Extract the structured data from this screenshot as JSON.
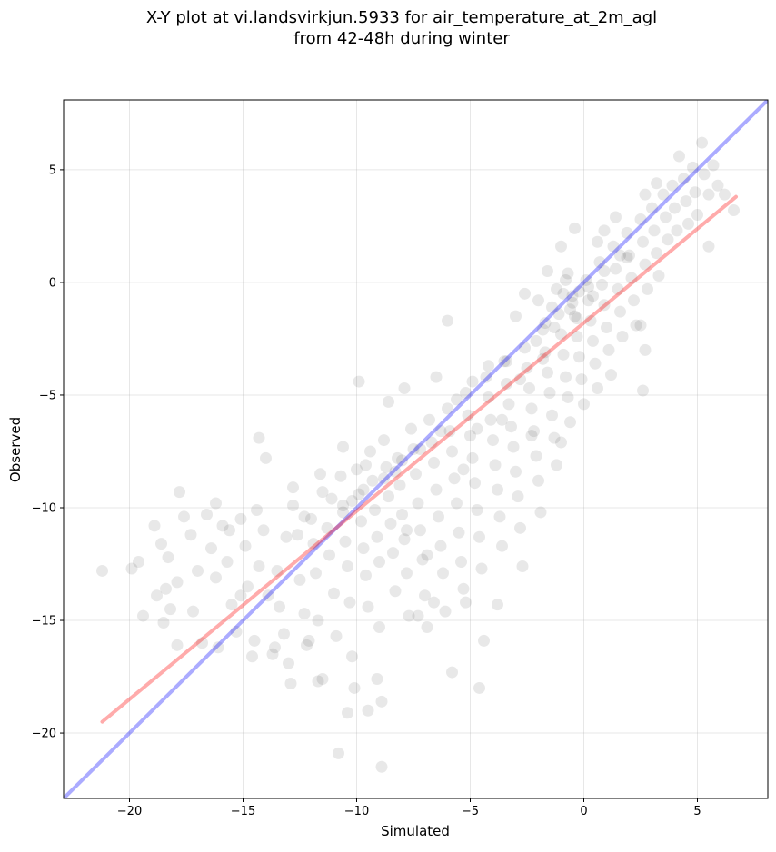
{
  "chart_data": {
    "type": "scatter",
    "title_line1": "X-Y plot at vi.landsvirkjun.5933 for air_temperature_at_2m_agl",
    "title_line2": "from 42-48h during winter",
    "xlabel": "Simulated",
    "ylabel": "Observed",
    "xlim": [
      -22.9,
      8.1
    ],
    "ylim": [
      -22.9,
      8.1
    ],
    "xticks": [
      -20,
      -15,
      -10,
      -5,
      0,
      5
    ],
    "yticks": [
      -20,
      -15,
      -10,
      -5,
      0,
      5
    ],
    "xtick_labels": [
      "−20",
      "−15",
      "−10",
      "−5",
      "0",
      "5"
    ],
    "ytick_labels": [
      "−20",
      "−15",
      "−10",
      "−5",
      "0",
      "5"
    ],
    "grid": true,
    "point_color": "#000000",
    "point_opacity": 0.09,
    "identity_line": {
      "x": [
        -22.9,
        8.1
      ],
      "y": [
        -22.9,
        8.1
      ],
      "color": "#0000ff",
      "opacity": 0.33
    },
    "fit_line": {
      "x": [
        -21.2,
        6.7
      ],
      "y": [
        -19.5,
        3.8
      ],
      "color": "#ff0000",
      "opacity": 0.33
    },
    "points": [
      [
        -21.2,
        -12.8
      ],
      [
        -19.9,
        -12.7
      ],
      [
        -19.6,
        -12.4
      ],
      [
        -18.9,
        -10.8
      ],
      [
        -18.6,
        -11.6
      ],
      [
        -18.3,
        -12.2
      ],
      [
        -18.4,
        -13.6
      ],
      [
        -18.5,
        -15.1
      ],
      [
        -18.2,
        -14.5
      ],
      [
        -17.9,
        -16.1
      ],
      [
        -17.8,
        -9.3
      ],
      [
        -17.6,
        -10.4
      ],
      [
        -17.3,
        -11.2
      ],
      [
        -17.0,
        -12.8
      ],
      [
        -17.2,
        -14.6
      ],
      [
        -16.8,
        -16.0
      ],
      [
        -16.6,
        -10.3
      ],
      [
        -16.4,
        -11.8
      ],
      [
        -16.2,
        -13.1
      ],
      [
        -15.9,
        -10.8
      ],
      [
        -15.7,
        -12.4
      ],
      [
        -15.5,
        -14.3
      ],
      [
        -15.3,
        -15.5
      ],
      [
        -15.1,
        -10.5
      ],
      [
        -14.9,
        -11.7
      ],
      [
        -14.8,
        -13.5
      ],
      [
        -14.5,
        -15.9
      ],
      [
        -14.3,
        -12.6
      ],
      [
        -14.1,
        -11.0
      ],
      [
        -13.9,
        -13.9
      ],
      [
        -13.7,
        -16.5
      ],
      [
        -13.5,
        -12.8
      ],
      [
        -13.4,
        -14.4
      ],
      [
        -13.2,
        -15.6
      ],
      [
        -13.0,
        -16.9
      ],
      [
        -12.8,
        -9.9
      ],
      [
        -12.6,
        -11.2
      ],
      [
        -12.5,
        -13.2
      ],
      [
        -12.3,
        -14.7
      ],
      [
        -12.2,
        -16.1
      ],
      [
        -12.0,
        -10.5
      ],
      [
        -11.9,
        -11.6
      ],
      [
        -11.8,
        -12.9
      ],
      [
        -11.7,
        -15.0
      ],
      [
        -11.5,
        -17.6
      ],
      [
        -11.5,
        -9.3
      ],
      [
        -11.3,
        -10.9
      ],
      [
        -11.2,
        -12.1
      ],
      [
        -11.0,
        -13.8
      ],
      [
        -10.9,
        -15.7
      ],
      [
        -10.8,
        -20.9
      ],
      [
        -10.7,
        -8.6
      ],
      [
        -10.6,
        -10.2
      ],
      [
        -10.5,
        -11.5
      ],
      [
        -10.4,
        -12.6
      ],
      [
        -10.3,
        -14.2
      ],
      [
        -10.2,
        -16.6
      ],
      [
        -10.1,
        -18.0
      ],
      [
        -10.0,
        -8.3
      ],
      [
        -9.9,
        -9.4
      ],
      [
        -9.8,
        -10.6
      ],
      [
        -9.7,
        -11.8
      ],
      [
        -9.6,
        -13.0
      ],
      [
        -9.5,
        -14.4
      ],
      [
        -9.5,
        -19.0
      ],
      [
        -9.4,
        -7.5
      ],
      [
        -9.3,
        -8.8
      ],
      [
        -9.2,
        -10.1
      ],
      [
        -9.1,
        -11.3
      ],
      [
        -9.0,
        -12.4
      ],
      [
        -9.0,
        -15.3
      ],
      [
        -8.9,
        -18.6
      ],
      [
        -8.9,
        -21.5
      ],
      [
        -8.8,
        -7.0
      ],
      [
        -8.7,
        -8.2
      ],
      [
        -8.6,
        -9.5
      ],
      [
        -8.5,
        -10.7
      ],
      [
        -8.4,
        -12.0
      ],
      [
        -8.3,
        -13.7
      ],
      [
        -8.2,
        -7.8
      ],
      [
        -8.1,
        -9.0
      ],
      [
        -8.0,
        -10.3
      ],
      [
        -7.9,
        -11.4
      ],
      [
        -7.8,
        -12.9
      ],
      [
        -7.7,
        -14.8
      ],
      [
        -7.6,
        -6.5
      ],
      [
        -7.5,
        -7.4
      ],
      [
        -7.4,
        -8.5
      ],
      [
        -7.3,
        -9.8
      ],
      [
        -7.2,
        -11.0
      ],
      [
        -7.1,
        -12.3
      ],
      [
        -7.0,
        -13.9
      ],
      [
        -6.9,
        -15.3
      ],
      [
        -6.8,
        -6.1
      ],
      [
        -6.7,
        -7.1
      ],
      [
        -6.6,
        -8.0
      ],
      [
        -6.5,
        -9.2
      ],
      [
        -6.4,
        -10.4
      ],
      [
        -6.3,
        -11.7
      ],
      [
        -6.2,
        -12.9
      ],
      [
        -6.1,
        -14.6
      ],
      [
        -6.0,
        -5.6
      ],
      [
        -5.9,
        -6.6
      ],
      [
        -5.8,
        -7.5
      ],
      [
        -5.7,
        -8.7
      ],
      [
        -5.6,
        -9.8
      ],
      [
        -5.5,
        -11.1
      ],
      [
        -5.4,
        -12.4
      ],
      [
        -5.3,
        -13.6
      ],
      [
        -5.2,
        -4.9
      ],
      [
        -5.1,
        -5.9
      ],
      [
        -5.0,
        -6.8
      ],
      [
        -4.9,
        -7.8
      ],
      [
        -4.8,
        -8.9
      ],
      [
        -4.7,
        -10.1
      ],
      [
        -4.6,
        -11.3
      ],
      [
        -4.5,
        -12.7
      ],
      [
        -4.4,
        -15.9
      ],
      [
        -4.3,
        -4.2
      ],
      [
        -4.2,
        -5.1
      ],
      [
        -4.1,
        -6.1
      ],
      [
        -4.0,
        -7.0
      ],
      [
        -3.9,
        -8.1
      ],
      [
        -3.8,
        -9.2
      ],
      [
        -3.7,
        -10.4
      ],
      [
        -3.6,
        -11.7
      ],
      [
        -3.5,
        -3.5
      ],
      [
        -3.4,
        -4.5
      ],
      [
        -3.3,
        -5.4
      ],
      [
        -3.2,
        -6.4
      ],
      [
        -3.1,
        -7.3
      ],
      [
        -3.0,
        -8.4
      ],
      [
        -2.9,
        -9.5
      ],
      [
        -2.8,
        -10.9
      ],
      [
        -2.7,
        -12.6
      ],
      [
        -2.6,
        -2.9
      ],
      [
        -2.5,
        -3.8
      ],
      [
        -2.4,
        -4.7
      ],
      [
        -2.3,
        -5.6
      ],
      [
        -2.2,
        -6.6
      ],
      [
        -2.1,
        -7.7
      ],
      [
        -2.0,
        -8.8
      ],
      [
        -1.9,
        -10.2
      ],
      [
        -1.8,
        -2.1
      ],
      [
        -1.7,
        -3.1
      ],
      [
        -1.6,
        -4.0
      ],
      [
        -1.5,
        -4.9
      ],
      [
        -1.4,
        -5.9
      ],
      [
        -1.3,
        -6.9
      ],
      [
        -1.2,
        -8.1
      ],
      [
        -1.1,
        -1.4
      ],
      [
        -1.0,
        -2.3
      ],
      [
        -0.9,
        -3.2
      ],
      [
        -0.8,
        -4.2
      ],
      [
        -0.7,
        -5.1
      ],
      [
        -0.6,
        -6.2
      ],
      [
        -0.5,
        -0.6
      ],
      [
        -0.4,
        -1.5
      ],
      [
        -0.3,
        -2.4
      ],
      [
        -0.2,
        -3.3
      ],
      [
        -0.1,
        -4.3
      ],
      [
        0.0,
        -5.4
      ],
      [
        0.1,
        0.1
      ],
      [
        0.2,
        -0.8
      ],
      [
        0.3,
        -1.7
      ],
      [
        0.4,
        -2.6
      ],
      [
        0.5,
        -3.6
      ],
      [
        0.6,
        -4.7
      ],
      [
        0.7,
        0.9
      ],
      [
        0.8,
        -0.1
      ],
      [
        0.9,
        -1.0
      ],
      [
        1.0,
        -2.0
      ],
      [
        1.1,
        -3.0
      ],
      [
        1.2,
        -4.1
      ],
      [
        1.3,
        1.6
      ],
      [
        1.4,
        0.6
      ],
      [
        1.5,
        -0.3
      ],
      [
        1.6,
        -1.3
      ],
      [
        1.7,
        -2.4
      ],
      [
        1.9,
        2.2
      ],
      [
        2.0,
        1.2
      ],
      [
        2.1,
        0.2
      ],
      [
        2.2,
        -0.8
      ],
      [
        2.3,
        -1.9
      ],
      [
        2.5,
        2.8
      ],
      [
        2.6,
        1.8
      ],
      [
        2.7,
        0.8
      ],
      [
        2.8,
        -0.3
      ],
      [
        3.0,
        3.3
      ],
      [
        3.1,
        2.3
      ],
      [
        3.2,
        1.3
      ],
      [
        3.3,
        0.3
      ],
      [
        3.5,
        3.9
      ],
      [
        3.6,
        2.9
      ],
      [
        3.7,
        1.9
      ],
      [
        3.9,
        4.3
      ],
      [
        4.0,
        3.3
      ],
      [
        4.1,
        2.3
      ],
      [
        4.2,
        5.6
      ],
      [
        4.4,
        4.6
      ],
      [
        4.5,
        3.6
      ],
      [
        4.6,
        2.6
      ],
      [
        4.8,
        5.1
      ],
      [
        4.9,
        4.0
      ],
      [
        5.0,
        3.0
      ],
      [
        5.2,
        6.2
      ],
      [
        5.3,
        4.8
      ],
      [
        5.5,
        3.9
      ],
      [
        5.5,
        1.6
      ],
      [
        5.7,
        5.2
      ],
      [
        5.9,
        4.3
      ],
      [
        6.2,
        3.9
      ],
      [
        6.6,
        3.2
      ],
      [
        2.7,
        -3.0
      ],
      [
        2.6,
        -4.8
      ],
      [
        2.5,
        -1.9
      ],
      [
        -2.3,
        -6.8
      ],
      [
        -1.0,
        -7.1
      ],
      [
        -4.6,
        -18.0
      ],
      [
        -5.8,
        -17.3
      ],
      [
        -3.8,
        -14.3
      ],
      [
        -5.2,
        -14.2
      ],
      [
        -7.3,
        -14.8
      ],
      [
        -6.6,
        -14.2
      ],
      [
        -11.7,
        -17.7
      ],
      [
        -13.6,
        -16.2
      ],
      [
        -12.9,
        -17.8
      ],
      [
        -14.3,
        -6.9
      ],
      [
        -14.0,
        -7.8
      ],
      [
        -12.8,
        -9.1
      ],
      [
        -9.9,
        -4.4
      ],
      [
        -6.5,
        -4.2
      ],
      [
        -6.0,
        -1.7
      ],
      [
        -7.9,
        -4.7
      ],
      [
        -10.6,
        -7.3
      ],
      [
        -11.6,
        -8.5
      ],
      [
        -8.6,
        -5.3
      ],
      [
        -1.0,
        1.6
      ],
      [
        -0.4,
        2.4
      ],
      [
        -1.6,
        0.5
      ],
      [
        -2.0,
        -0.8
      ],
      [
        -3.0,
        -1.5
      ],
      [
        -2.6,
        -0.5
      ],
      [
        -0.7,
        0.4
      ],
      [
        0.6,
        1.8
      ],
      [
        1.9,
        1.1
      ],
      [
        1.4,
        2.9
      ],
      [
        0.9,
        2.3
      ],
      [
        3.2,
        4.4
      ],
      [
        2.7,
        3.9
      ],
      [
        -16.2,
        -9.8
      ],
      [
        -17.9,
        -13.3
      ],
      [
        -15.1,
        -13.9
      ],
      [
        -16.1,
        -16.2
      ],
      [
        -18.8,
        -13.9
      ],
      [
        -19.4,
        -14.8
      ],
      [
        -14.6,
        -16.6
      ],
      [
        -12.1,
        -15.9
      ],
      [
        -10.4,
        -19.1
      ],
      [
        -9.1,
        -17.6
      ],
      [
        -6.9,
        -12.1
      ],
      [
        -7.8,
        -11.0
      ],
      [
        -8.3,
        -8.4
      ],
      [
        -9.6,
        -8.1
      ],
      [
        -10.2,
        -9.7
      ],
      [
        -11.1,
        -9.6
      ],
      [
        -12.3,
        -10.4
      ],
      [
        -13.1,
        -11.3
      ],
      [
        -14.4,
        -10.1
      ],
      [
        -15.6,
        -11.0
      ],
      [
        -5.3,
        -8.3
      ],
      [
        -4.7,
        -6.5
      ],
      [
        -3.6,
        -6.1
      ],
      [
        -2.8,
        -4.3
      ],
      [
        -1.8,
        -3.4
      ],
      [
        -1.3,
        -2.0
      ],
      [
        -0.6,
        -1.2
      ],
      [
        0.2,
        -0.2
      ],
      [
        0.9,
        0.5
      ],
      [
        1.6,
        1.2
      ],
      [
        -0.9,
        -0.5
      ],
      [
        -0.5,
        -0.9
      ],
      [
        -0.2,
        -0.4
      ],
      [
        -1.4,
        -1.1
      ],
      [
        -1.2,
        -0.3
      ],
      [
        -0.8,
        0.1
      ],
      [
        -0.3,
        -1.6
      ],
      [
        0.4,
        -0.6
      ],
      [
        -1.7,
        -1.8
      ],
      [
        -2.1,
        -2.6
      ],
      [
        -3.4,
        -3.5
      ],
      [
        -4.2,
        -3.7
      ],
      [
        -4.9,
        -4.4
      ],
      [
        -5.6,
        -5.2
      ],
      [
        -6.3,
        -6.6
      ],
      [
        -7.2,
        -7.4
      ],
      [
        -8.0,
        -7.9
      ],
      [
        -8.8,
        -8.7
      ],
      [
        -9.7,
        -9.2
      ],
      [
        -10.6,
        -9.9
      ]
    ]
  }
}
